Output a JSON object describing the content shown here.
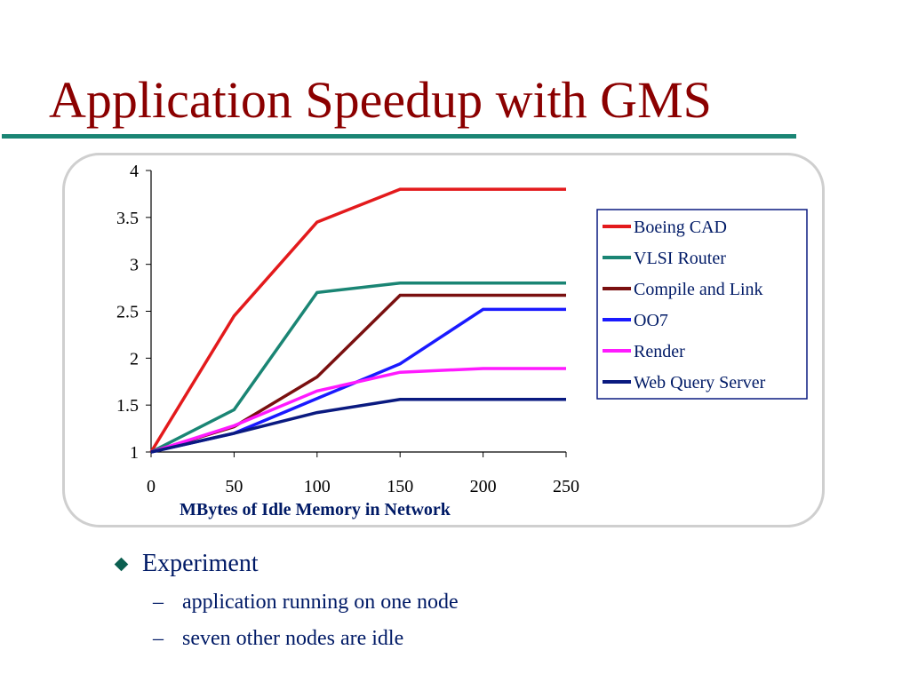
{
  "slide": {
    "title": "Application Speedup with GMS"
  },
  "bullets": {
    "main": "Experiment",
    "subs": [
      "application running on one node",
      "seven other nodes are idle"
    ],
    "dash": "–"
  },
  "colors": {
    "title": "#8b0000",
    "rule": "#1a8574",
    "axis_title": "#001a66"
  },
  "chart_data": {
    "type": "line",
    "title": "",
    "xlabel": "MBytes of Idle Memory in Network",
    "ylabel": "",
    "x": [
      0,
      50,
      100,
      150,
      200,
      250
    ],
    "xlim": [
      0,
      250
    ],
    "ylim": [
      1,
      4
    ],
    "x_ticks": [
      "0",
      "50",
      "100",
      "150",
      "200",
      "250"
    ],
    "y_ticks": [
      "1",
      "1.5",
      "2",
      "2.5",
      "3",
      "3.5",
      "4"
    ],
    "grid": false,
    "legend_position": "right",
    "series": [
      {
        "name": "Boeing CAD",
        "color": "#e31a1c",
        "values": [
          1.0,
          2.45,
          3.45,
          3.8,
          3.8,
          3.8
        ]
      },
      {
        "name": "VLSI Router",
        "color": "#1a8574",
        "values": [
          1.0,
          1.45,
          2.7,
          2.8,
          2.8,
          2.8
        ]
      },
      {
        "name": "Compile and Link",
        "color": "#7a1010",
        "values": [
          1.0,
          1.27,
          1.8,
          2.67,
          2.67,
          2.67
        ]
      },
      {
        "name": "OO7",
        "color": "#1a1aff",
        "values": [
          1.0,
          1.2,
          1.57,
          1.94,
          2.52,
          2.52
        ]
      },
      {
        "name": "Render",
        "color": "#ff1aff",
        "values": [
          1.0,
          1.28,
          1.65,
          1.85,
          1.89,
          1.89
        ]
      },
      {
        "name": "Web Query Server",
        "color": "#0a1a80",
        "values": [
          1.0,
          1.2,
          1.42,
          1.56,
          1.56,
          1.56
        ]
      }
    ]
  }
}
